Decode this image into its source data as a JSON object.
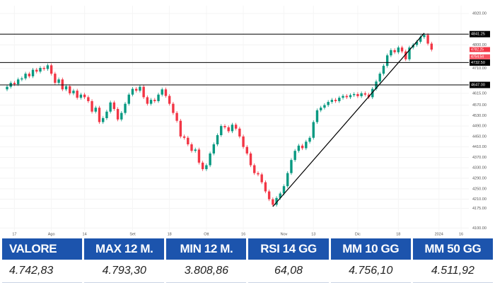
{
  "chart_data": {
    "type": "candlestick",
    "categories": [
      null,
      null,
      "17",
      null,
      null,
      null,
      null,
      null,
      null,
      null,
      null,
      null,
      "Ago",
      null,
      null,
      null,
      null,
      null,
      null,
      null,
      null,
      "14",
      null,
      null,
      null,
      null,
      null,
      null,
      null,
      null,
      null,
      null,
      null,
      null,
      "Set",
      null,
      null,
      null,
      null,
      null,
      null,
      null,
      null,
      null,
      "18",
      null,
      null,
      null,
      null,
      null,
      null,
      null,
      null,
      null,
      "Ott",
      null,
      null,
      null,
      null,
      null,
      null,
      null,
      null,
      null,
      "16",
      null,
      null,
      null,
      null,
      null,
      null,
      null,
      null,
      null,
      null,
      "Nov",
      null,
      null,
      null,
      null,
      null,
      null,
      null,
      "13",
      null,
      null,
      null,
      null,
      null,
      null,
      null,
      null,
      null,
      null,
      null,
      "Dic",
      null,
      null,
      null,
      null,
      null,
      null,
      null,
      null,
      null,
      null,
      "18",
      null,
      null,
      null,
      null,
      null,
      null,
      null,
      null,
      null,
      null,
      "2024",
      null,
      null,
      null,
      null,
      null,
      "16",
      null
    ],
    "open": [
      4630,
      4640,
      4655,
      4650,
      4668,
      4672,
      4690,
      4680,
      4705,
      4698,
      4712,
      4708,
      4722,
      4690,
      4655,
      4668,
      4630,
      4642,
      4615,
      4625,
      4598,
      4610,
      4600,
      4585,
      4545,
      4560,
      4505,
      4520,
      4545,
      4580,
      4555,
      4515,
      4540,
      4575,
      4610,
      4632,
      4625,
      4640,
      4600,
      4575,
      4590,
      4585,
      4610,
      4630,
      4605,
      4575,
      4540,
      4510,
      4450,
      4445,
      4420,
      4395,
      4400,
      4350,
      4325,
      4340,
      4385,
      4420,
      4455,
      4490,
      4485,
      4470,
      4495,
      4480,
      4450,
      4410,
      4385,
      4340,
      4310,
      4305,
      4275,
      4240,
      4210,
      4189,
      4215,
      4232,
      4260,
      4310,
      4360,
      4395,
      4415,
      4405,
      4430,
      4445,
      4505,
      4550,
      4560,
      4570,
      4582,
      4590,
      4585,
      4598,
      4605,
      4600,
      4608,
      4612,
      4604,
      4615,
      4610,
      4600,
      4632,
      4660,
      4690,
      4720,
      4760,
      4780,
      4772,
      4790,
      4775,
      4745,
      4790,
      4800,
      4812,
      4830,
      4838,
      4805,
      null,
      null,
      null,
      null,
      null,
      null,
      null,
      null,
      null
    ],
    "high": [
      4647,
      4662,
      4662,
      4675,
      4679,
      4697,
      4697,
      4712,
      4712,
      4719,
      4719,
      4729,
      4729,
      4697,
      4675,
      4675,
      4649,
      4649,
      4632,
      4632,
      4617,
      4617,
      4607,
      4592,
      4567,
      4567,
      4527,
      4552,
      4587,
      4587,
      4562,
      4547,
      4582,
      4617,
      4639,
      4639,
      4647,
      4647,
      4607,
      4597,
      4597,
      4617,
      4637,
      4637,
      4612,
      4582,
      4547,
      4517,
      4457,
      4452,
      4427,
      4407,
      4407,
      4357,
      4347,
      4392,
      4427,
      4462,
      4497,
      4497,
      4492,
      4502,
      4502,
      4487,
      4457,
      4417,
      4392,
      4347,
      4317,
      4312,
      4282,
      4247,
      4217,
      4222,
      4239,
      4267,
      4317,
      4367,
      4402,
      4422,
      4422,
      4437,
      4452,
      4512,
      4557,
      4567,
      4577,
      4589,
      4597,
      4597,
      4605,
      4612,
      4612,
      4615,
      4619,
      4619,
      4622,
      4622,
      4617,
      4639,
      4667,
      4697,
      4727,
      4767,
      4787,
      4787,
      4797,
      4797,
      4782,
      4797,
      4807,
      4819,
      4837,
      4845,
      4845,
      4812,
      null,
      null,
      null,
      null,
      null,
      null,
      null,
      null,
      null
    ],
    "low": [
      4623,
      4633,
      4643,
      4643,
      4661,
      4665,
      4673,
      4673,
      4691,
      4691,
      4701,
      4701,
      4683,
      4648,
      4648,
      4623,
      4623,
      4608,
      4608,
      4591,
      4591,
      4593,
      4578,
      4538,
      4538,
      4498,
      4498,
      4513,
      4538,
      4548,
      4508,
      4508,
      4533,
      4568,
      4603,
      4618,
      4618,
      4593,
      4568,
      4568,
      4578,
      4578,
      4603,
      4598,
      4568,
      4533,
      4503,
      4443,
      4438,
      4413,
      4388,
      4388,
      4343,
      4318,
      4318,
      4333,
      4378,
      4413,
      4448,
      4478,
      4463,
      4463,
      4473,
      4443,
      4403,
      4378,
      4333,
      4303,
      4298,
      4268,
      4233,
      4203,
      4182,
      4182,
      4208,
      4225,
      4253,
      4303,
      4353,
      4388,
      4398,
      4398,
      4423,
      4438,
      4498,
      4543,
      4553,
      4563,
      4575,
      4578,
      4578,
      4591,
      4593,
      4593,
      4601,
      4597,
      4597,
      4603,
      4593,
      4593,
      4625,
      4653,
      4683,
      4713,
      4753,
      4765,
      4765,
      4768,
      4738,
      4738,
      4783,
      4793,
      4805,
      4823,
      4798,
      4775,
      null,
      null,
      null,
      null,
      null,
      null,
      null,
      null,
      null
    ],
    "close": [
      4640,
      4655,
      4650,
      4668,
      4672,
      4690,
      4680,
      4705,
      4698,
      4712,
      4708,
      4722,
      4690,
      4655,
      4668,
      4630,
      4642,
      4615,
      4625,
      4598,
      4610,
      4600,
      4585,
      4545,
      4560,
      4505,
      4520,
      4545,
      4580,
      4555,
      4515,
      4540,
      4575,
      4610,
      4632,
      4625,
      4640,
      4600,
      4575,
      4590,
      4585,
      4610,
      4630,
      4605,
      4575,
      4540,
      4510,
      4450,
      4445,
      4420,
      4395,
      4400,
      4350,
      4325,
      4340,
      4385,
      4420,
      4455,
      4490,
      4485,
      4470,
      4495,
      4480,
      4450,
      4410,
      4385,
      4340,
      4310,
      4305,
      4275,
      4240,
      4210,
      4189,
      4215,
      4232,
      4260,
      4310,
      4360,
      4395,
      4415,
      4405,
      4430,
      4445,
      4505,
      4550,
      4560,
      4570,
      4582,
      4590,
      4585,
      4598,
      4605,
      4600,
      4608,
      4612,
      4604,
      4615,
      4610,
      4600,
      4632,
      4660,
      4690,
      4720,
      4760,
      4780,
      4772,
      4790,
      4775,
      4745,
      4790,
      4800,
      4812,
      4830,
      4838,
      4805,
      4782,
      null,
      null,
      null,
      null,
      null,
      null,
      null,
      null,
      null
    ],
    "up_color": "#089981",
    "down_color": "#f23645",
    "ylim": [
      4090,
      4950
    ],
    "yticks": [
      {
        "value": 4920,
        "label": "4920.00"
      },
      {
        "value": 4800,
        "label": "4800.00"
      },
      {
        "value": 4710,
        "label": "4710.00"
      },
      {
        "value": 4615,
        "label": "4615.00"
      },
      {
        "value": 4570,
        "label": "4570.00"
      },
      {
        "value": 4530,
        "label": "4530.00"
      },
      {
        "value": 4490,
        "label": "4490.00"
      },
      {
        "value": 4450,
        "label": "4450.00"
      },
      {
        "value": 4410,
        "label": "4410.00"
      },
      {
        "value": 4370,
        "label": "4370.00"
      },
      {
        "value": 4330,
        "label": "4330.00"
      },
      {
        "value": 4290,
        "label": "4290.00"
      },
      {
        "value": 4250,
        "label": "4250.00"
      },
      {
        "value": 4210,
        "label": "4210.00"
      },
      {
        "value": 4175,
        "label": "4175.00"
      },
      {
        "value": 4100,
        "label": "4100.00"
      }
    ],
    "grid": true,
    "levels": [
      {
        "value": 4841.25,
        "label": "4841.25"
      },
      {
        "value": 4732.5,
        "label": "4732.50"
      },
      {
        "value": 4647,
        "label": "4647.00"
      }
    ],
    "level_color": "#000000",
    "price_tags": [
      {
        "value": 4782.25,
        "label": "4782.25",
        "color": "#f23645"
      },
      {
        "value": 4754.54,
        "label": "4754.54",
        "color": "#f7525f"
      }
    ],
    "trendline": {
      "x": [
        72,
        113
      ],
      "y": [
        4182,
        4845
      ],
      "color": "#000000"
    }
  },
  "table": {
    "header": [
      "VALORE",
      "MAX 12 M.",
      "MIN 12 M.",
      "RSI 14 GG",
      "MM 10 GG",
      "MM 50 GG"
    ],
    "rows": [
      [
        "4.742,83",
        "4.793,30",
        "3.808,86",
        "64,08",
        "4.756,10",
        "4.511,92"
      ]
    ]
  }
}
